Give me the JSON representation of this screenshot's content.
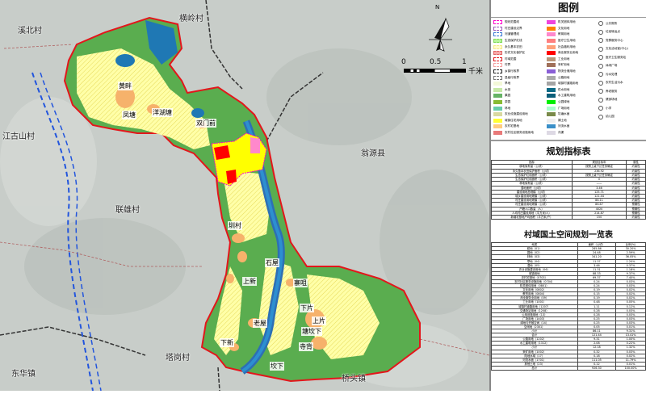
{
  "map": {
    "regions": [
      {
        "name": "溪北村"
      },
      {
        "name": "横岭村"
      },
      {
        "name": "江古山村"
      },
      {
        "name": "联雄村"
      },
      {
        "name": "翁源县"
      },
      {
        "name": "塔岗村"
      },
      {
        "name": "东华镇"
      },
      {
        "name": "桥头镇"
      }
    ],
    "places": [
      "黄畔",
      "凤塘",
      "洋湖塘",
      "双门前",
      "圳村",
      "石屋",
      "上新",
      "寨咀",
      "下片",
      "上片",
      "塘坎下",
      "寺背",
      "老屋",
      "下新",
      "坎下"
    ],
    "north_label": "N",
    "scale": {
      "ticks": [
        "0",
        "0.5",
        "1"
      ],
      "unit": "千米"
    },
    "colors": {
      "boundary": "#e3161b",
      "forest": "#5aad4f",
      "farmland": "#ffff9e",
      "water": "#1f78b4",
      "river": "#2d8fd0",
      "homestead": "#f6b26b",
      "commercial": "#ff0000",
      "construction": "#ffff00",
      "education": "#ff7fd0"
    }
  },
  "legend": {
    "title": "图例",
    "col1": [
      {
        "label": "规划范围线",
        "color": "#ffffff",
        "border": "#ff00cc"
      },
      {
        "label": "村庄建设边界",
        "color": "#ffffff",
        "border": "#9b59b6"
      },
      {
        "label": "河道管理线",
        "color": "#ffffff",
        "border": "#3a7bd5"
      },
      {
        "label": "生态保护红线",
        "color": "#b9f59b",
        "border": "#7ed957"
      },
      {
        "label": "永久基本农田",
        "color": "#fffccc",
        "border": "#f5e98a"
      },
      {
        "label": "历史文化保护区",
        "color": "#f7a8a8",
        "border": "#e06666"
      },
      {
        "label": "村域范围",
        "color": "#ffffff",
        "border": "#e3161b"
      },
      {
        "label": "村界",
        "color": "#ffffff",
        "border": "#f5a0a0"
      },
      {
        "label": "乡镇行政界",
        "color": "#ffffff",
        "border": "#222222"
      },
      {
        "label": "县级行政界",
        "color": "#ffffff",
        "border": "#777777"
      },
      {
        "label": "旱地",
        "color": "#f3f8d8"
      },
      {
        "label": "水田",
        "color": "#c6e8a6"
      },
      {
        "label": "果园",
        "color": "#66b366"
      },
      {
        "label": "茶园",
        "color": "#88bb33"
      },
      {
        "label": "林地",
        "color": "#66ccaa"
      },
      {
        "label": "农业设施建设用地",
        "color": "#d9d9a0"
      },
      {
        "label": "城镇住宅用地",
        "color": "#ffff33"
      },
      {
        "label": "农村宅基地",
        "color": "#ffcc80"
      },
      {
        "label": "农村社区服务设施用地",
        "color": "#e97a7a"
      }
    ],
    "col2": [
      {
        "label": "机关团体用地",
        "color": "#ee44dd"
      },
      {
        "label": "文化用地",
        "color": "#ff7f00"
      },
      {
        "label": "教育用地",
        "color": "#ff88cc"
      },
      {
        "label": "医疗卫生用地",
        "color": "#ff7f7f"
      },
      {
        "label": "社会福利用地",
        "color": "#ffa07a"
      },
      {
        "label": "商业服务业用地",
        "color": "#ff0000"
      },
      {
        "label": "工业用地",
        "color": "#b8967a"
      },
      {
        "label": "采矿用地",
        "color": "#a0705a"
      },
      {
        "label": "物流仓储用地",
        "color": "#8a5fd6"
      },
      {
        "label": "公路用地",
        "color": "#aaaaaa"
      },
      {
        "label": "城镇村道路用地",
        "color": "#a5a5a5"
      },
      {
        "label": "供水用地",
        "color": "#0b6b86"
      },
      {
        "label": "水工建筑用地",
        "color": "#0a5f7a"
      },
      {
        "label": "公园绿地",
        "color": "#00ee00"
      },
      {
        "label": "广场用地",
        "color": "#aaffcc"
      },
      {
        "label": "坑塘水面",
        "color": "#7a8a4a"
      },
      {
        "label": "裸土地",
        "color": "#eeeeee"
      },
      {
        "label": "河流水面",
        "color": "#3a8fc8"
      },
      {
        "label": "沟渠",
        "color": "#ddd9e4"
      }
    ],
    "col3": [
      "公共厕所",
      "垃圾转运点",
      "党群服务中心",
      "文化活动室(中心)",
      "医疗卫生服务站",
      "休闲广场",
      "污水处理",
      "农村生活污水",
      "养老服务",
      "健身场地",
      "小学",
      "幼儿园"
    ]
  },
  "indicators": {
    "title": "规划指标表",
    "headers": [
      "指标",
      "规划目标年",
      "属性"
    ],
    "rows": [
      [
        "耕地保有量（公顷）",
        "按照上级下达任务确定",
        "约束性"
      ],
      [
        "永久基本农田保护面积（公顷）",
        "236.92",
        "约束性"
      ],
      [
        "生态保护红线面积（公顷）",
        "按照上级下达任务确定",
        "约束性"
      ],
      [
        "生态保护红线面积（公顷）",
        "0",
        "约束性"
      ],
      [
        "林地保有量（公顷）",
        "——",
        "约束性"
      ],
      [
        "湿地面积（公顷）",
        "3.46",
        "约束性"
      ],
      [
        "建设用地总规模（公顷）",
        "125.71",
        "约束性"
      ],
      [
        "城乡建设用地规模（公顷）",
        "121.44",
        "约束性"
      ],
      [
        "村庄建设用地规模（公顷）",
        "88.11",
        "约束性"
      ],
      [
        "村庄建设用地规模（公顷）",
        "86.67",
        "预期性"
      ],
      [
        "户籍人口数量（人）",
        "4020",
        "预期性"
      ],
      [
        "人均村庄建设用地（平方米/人）",
        "214.87",
        "预期性"
      ],
      [
        "新增宅基地户均面积（平方米/户）",
        "150",
        "约束性"
      ]
    ]
  },
  "landuse": {
    "title": "村域国土空间规划一览表",
    "headers": [
      "地类",
      "规划目标年",
      "面积（公顷）",
      "比例(%)"
    ],
    "rows": [
      [
        "耕地（01）",
        "285.86",
        "30.20%"
      ],
      [
        "园地（02）",
        "24.48",
        "2.59%"
      ],
      [
        "林地（03）",
        "341.20",
        "36.05%"
      ],
      [
        "草地（04）",
        "11.37",
        "1.20%"
      ],
      [
        "湿地（05）",
        "3.46",
        "0.37%"
      ],
      [
        "农业设施建设用地（06）",
        "11.31",
        "1.18%"
      ],
      [
        "城镇用地",
        "88.33",
        "9.37%"
      ],
      [
        "农村宅基地（0703）",
        "69.37",
        "7.40%"
      ],
      [
        "农村社区服务设施用地（0704）",
        "0.24",
        "0.03%"
      ],
      [
        "机关团体用地（0801）",
        "0.24",
        "0.03%"
      ],
      [
        "文化用地（0802）",
        "0.19",
        "0.02%"
      ],
      [
        "教育用地（0804）",
        "0.15",
        "0.02%"
      ],
      [
        "商业服务业用地（09）",
        "0.19",
        "0.02%"
      ],
      [
        "工业用地（1001）",
        "0.48",
        "0.05%"
      ],
      [
        "城镇村道路用地（1207）",
        "1.11",
        "0.12%"
      ],
      [
        "交通场站用地（1208）",
        "0.28",
        "0.03%"
      ],
      [
        "公用设施用地（13）",
        "0.28",
        "0.03%"
      ],
      [
        "广场用地（1403）",
        "0.25",
        "0.03%"
      ],
      [
        "绿地与开敞空间（14）",
        "0.25",
        "0.03%"
      ],
      [
        "空闲地（2301）",
        "0.05",
        "0.01%"
      ],
      [
        "小计",
        "86.11",
        "9.31%"
      ],
      [
        "合计",
        "121.44",
        "13.41%"
      ],
      [
        "公路用地（1202）",
        "9.31",
        "1.00%"
      ],
      [
        "水工建筑用地（1312）",
        "2.08",
        "0.22%"
      ],
      [
        "小计",
        "12.18",
        "1.32%"
      ],
      [
        "采矿用地（1002）",
        "0.32",
        "0.03%"
      ],
      [
        "陆地水域（17）",
        "0.18",
        "0.02%"
      ],
      [
        "河流水面（1701）",
        "111.05",
        "11.79%"
      ],
      [
        "其他土地（23）",
        "0.12",
        "0.01%"
      ],
      [
        "总计",
        "926.30",
        "100.00%"
      ]
    ]
  }
}
